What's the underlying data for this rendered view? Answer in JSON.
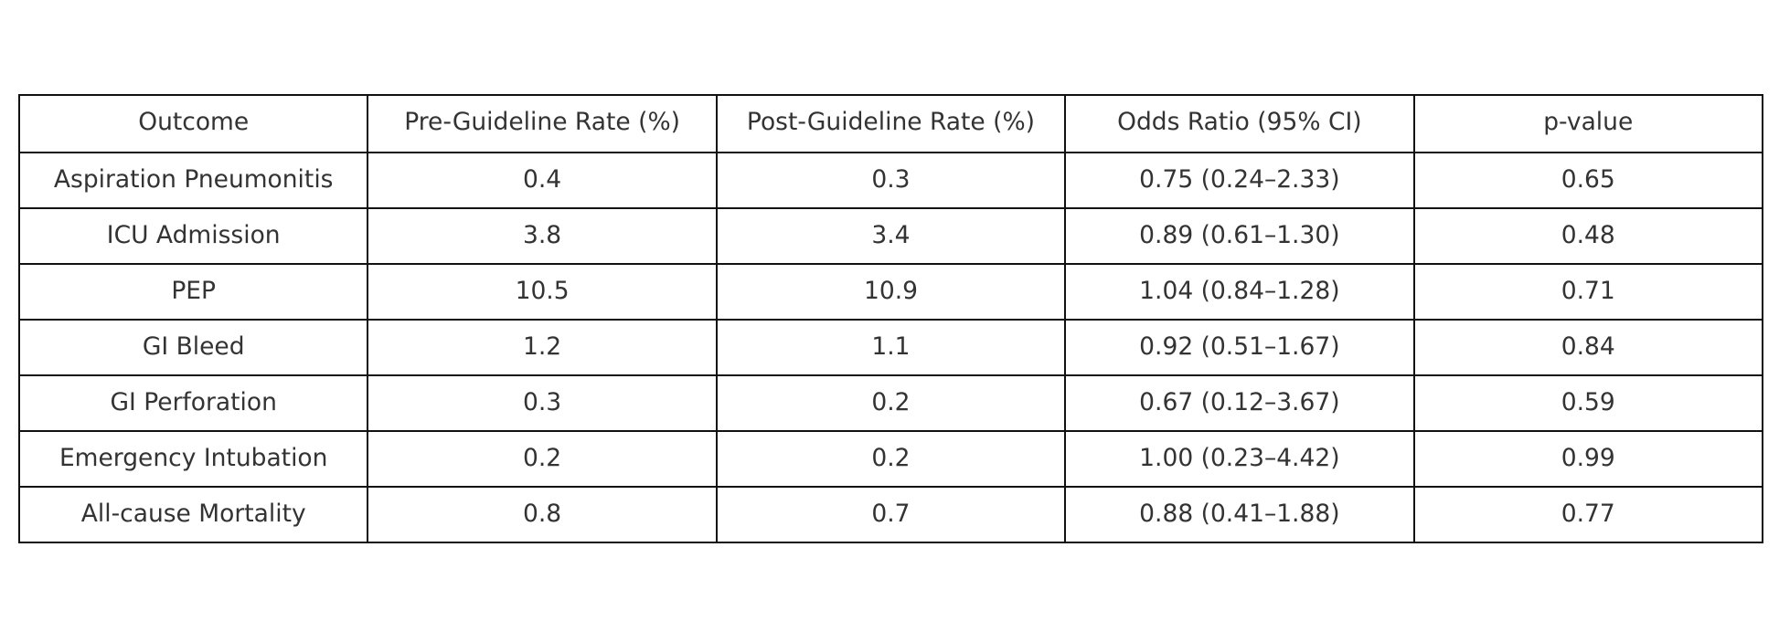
{
  "chart_data": {
    "type": "table",
    "columns": [
      "Outcome",
      "Pre-Guideline Rate (%)",
      "Post-Guideline Rate (%)",
      "Odds Ratio (95% CI)",
      "p-value"
    ],
    "rows": [
      [
        "Aspiration Pneumonitis",
        "0.4",
        "0.3",
        "0.75 (0.24–2.33)",
        "0.65"
      ],
      [
        "ICU Admission",
        "3.8",
        "3.4",
        "0.89 (0.61–1.30)",
        "0.48"
      ],
      [
        "PEP",
        "10.5",
        "10.9",
        "1.04 (0.84–1.28)",
        "0.71"
      ],
      [
        "GI Bleed",
        "1.2",
        "1.1",
        "0.92 (0.51–1.67)",
        "0.84"
      ],
      [
        "GI Perforation",
        "0.3",
        "0.2",
        "0.67 (0.12–3.67)",
        "0.59"
      ],
      [
        "Emergency Intubation",
        "0.2",
        "0.2",
        "1.00 (0.23–4.42)",
        "0.99"
      ],
      [
        "All-cause Mortality",
        "0.8",
        "0.7",
        "0.88 (0.41–1.88)",
        "0.77"
      ]
    ]
  },
  "colors": {
    "border": "#111111",
    "text": "#333333",
    "background": "#ffffff"
  }
}
